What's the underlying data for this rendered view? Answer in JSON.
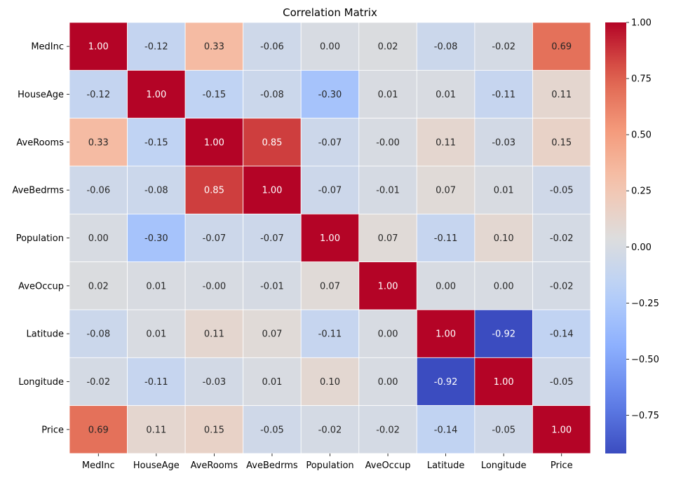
{
  "chart_data": {
    "type": "heatmap",
    "title": "Correlation Matrix",
    "x_labels": [
      "MedInc",
      "HouseAge",
      "AveRooms",
      "AveBedrms",
      "Population",
      "AveOccup",
      "Latitude",
      "Longitude",
      "Price"
    ],
    "y_labels": [
      "MedInc",
      "HouseAge",
      "AveRooms",
      "AveBedrms",
      "Population",
      "AveOccup",
      "Latitude",
      "Longitude",
      "Price"
    ],
    "values": [
      [
        1.0,
        -0.12,
        0.33,
        -0.06,
        0.0,
        0.02,
        -0.08,
        -0.02,
        0.69
      ],
      [
        -0.12,
        1.0,
        -0.15,
        -0.08,
        -0.3,
        0.01,
        0.01,
        -0.11,
        0.11
      ],
      [
        0.33,
        -0.15,
        1.0,
        0.85,
        -0.07,
        -0.0,
        0.11,
        -0.03,
        0.15
      ],
      [
        -0.06,
        -0.08,
        0.85,
        1.0,
        -0.07,
        -0.01,
        0.07,
        0.01,
        -0.05
      ],
      [
        0.0,
        -0.3,
        -0.07,
        -0.07,
        1.0,
        0.07,
        -0.11,
        0.1,
        -0.02
      ],
      [
        0.02,
        0.01,
        -0.0,
        -0.01,
        0.07,
        1.0,
        0.0,
        0.0,
        -0.02
      ],
      [
        -0.08,
        0.01,
        0.11,
        0.07,
        -0.11,
        0.0,
        1.0,
        -0.92,
        -0.14
      ],
      [
        -0.02,
        -0.11,
        -0.03,
        0.01,
        0.1,
        0.0,
        -0.92,
        1.0,
        -0.05
      ],
      [
        0.69,
        0.11,
        0.15,
        -0.05,
        -0.02,
        -0.02,
        -0.14,
        -0.05,
        1.0
      ]
    ],
    "value_labels": [
      [
        "1.00",
        "-0.12",
        "0.33",
        "-0.06",
        "0.00",
        "0.02",
        "-0.08",
        "-0.02",
        "0.69"
      ],
      [
        "-0.12",
        "1.00",
        "-0.15",
        "-0.08",
        "-0.30",
        "0.01",
        "0.01",
        "-0.11",
        "0.11"
      ],
      [
        "0.33",
        "-0.15",
        "1.00",
        "0.85",
        "-0.07",
        "-0.00",
        "0.11",
        "-0.03",
        "0.15"
      ],
      [
        "-0.06",
        "-0.08",
        "0.85",
        "1.00",
        "-0.07",
        "-0.01",
        "0.07",
        "0.01",
        "-0.05"
      ],
      [
        "0.00",
        "-0.30",
        "-0.07",
        "-0.07",
        "1.00",
        "0.07",
        "-0.11",
        "0.10",
        "-0.02"
      ],
      [
        "0.02",
        "0.01",
        "-0.00",
        "-0.01",
        "0.07",
        "1.00",
        "0.00",
        "0.00",
        "-0.02"
      ],
      [
        "-0.08",
        "0.01",
        "0.11",
        "0.07",
        "-0.11",
        "0.00",
        "1.00",
        "-0.92",
        "-0.14"
      ],
      [
        "-0.02",
        "-0.11",
        "-0.03",
        "0.01",
        "0.10",
        "0.00",
        "-0.92",
        "1.00",
        "-0.05"
      ],
      [
        "0.69",
        "0.11",
        "0.15",
        "-0.05",
        "-0.02",
        "-0.02",
        "-0.14",
        "-0.05",
        "1.00"
      ]
    ],
    "colormap": "coolwarm",
    "colorbar": {
      "vmin": -0.92,
      "vmax": 1.0,
      "ticks": [
        1.0,
        0.75,
        0.5,
        0.25,
        0.0,
        -0.25,
        -0.5,
        -0.75
      ],
      "tick_labels": [
        "1.00",
        "0.75",
        "0.50",
        "0.25",
        "0.00",
        "−0.25",
        "−0.50",
        "−0.75"
      ]
    },
    "colors": {
      "low": "#3b4cc0",
      "mid": "#dddddd",
      "high": "#b40426",
      "cell_border": "#ffffff"
    },
    "grid": false,
    "legend": "colorbar-right"
  }
}
